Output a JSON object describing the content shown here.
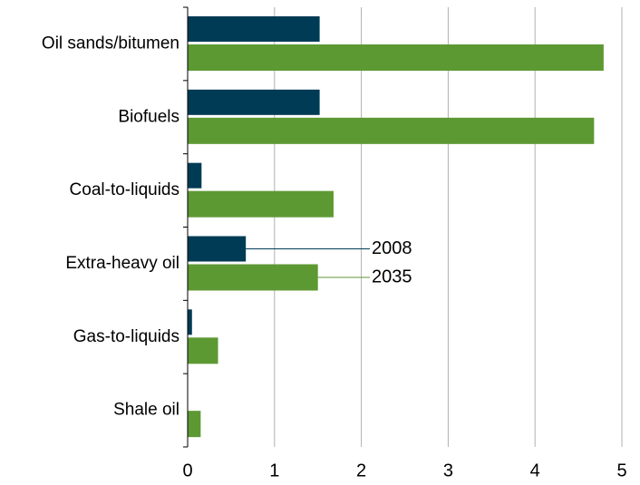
{
  "chart_data": {
    "type": "bar",
    "orientation": "horizontal",
    "categories": [
      "Oil sands/bitumen",
      "Biofuels",
      "Coal-to-liquids",
      "Extra-heavy oil",
      "Gas-to-liquids",
      "Shale oil"
    ],
    "series": [
      {
        "name": "2008",
        "color": "#003b55",
        "values": [
          1.52,
          1.52,
          0.16,
          0.67,
          0.05,
          0
        ]
      },
      {
        "name": "2035",
        "color": "#5d9933",
        "values": [
          4.79,
          4.68,
          1.68,
          1.5,
          0.35,
          0.15
        ]
      }
    ],
    "xlim": [
      0,
      5
    ],
    "xticks": [
      0,
      1,
      2,
      3,
      4,
      5
    ],
    "grid": true
  }
}
